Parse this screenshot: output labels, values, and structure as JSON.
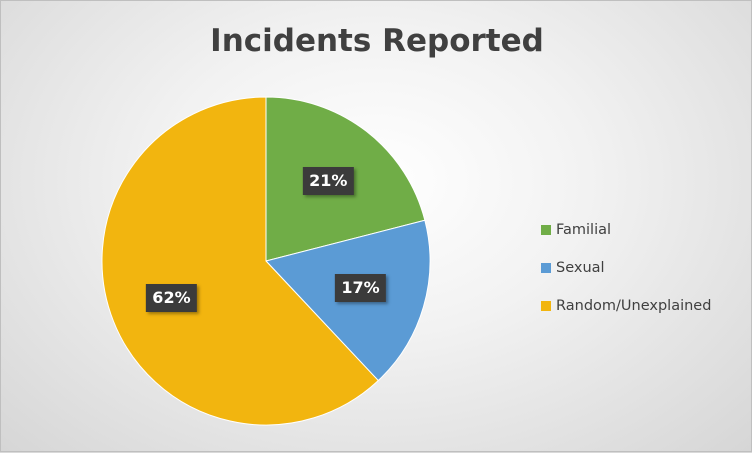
{
  "chart_data": {
    "type": "pie",
    "title": "Incidents Reported",
    "categories": [
      "Familial",
      "Sexual",
      "Random/Unexplained"
    ],
    "values": [
      21,
      17,
      62
    ],
    "labels": [
      "21%",
      "17%",
      "62%"
    ],
    "colors": [
      "#70ad47",
      "#5b9bd5",
      "#f2b50f"
    ],
    "legend_position": "right"
  }
}
